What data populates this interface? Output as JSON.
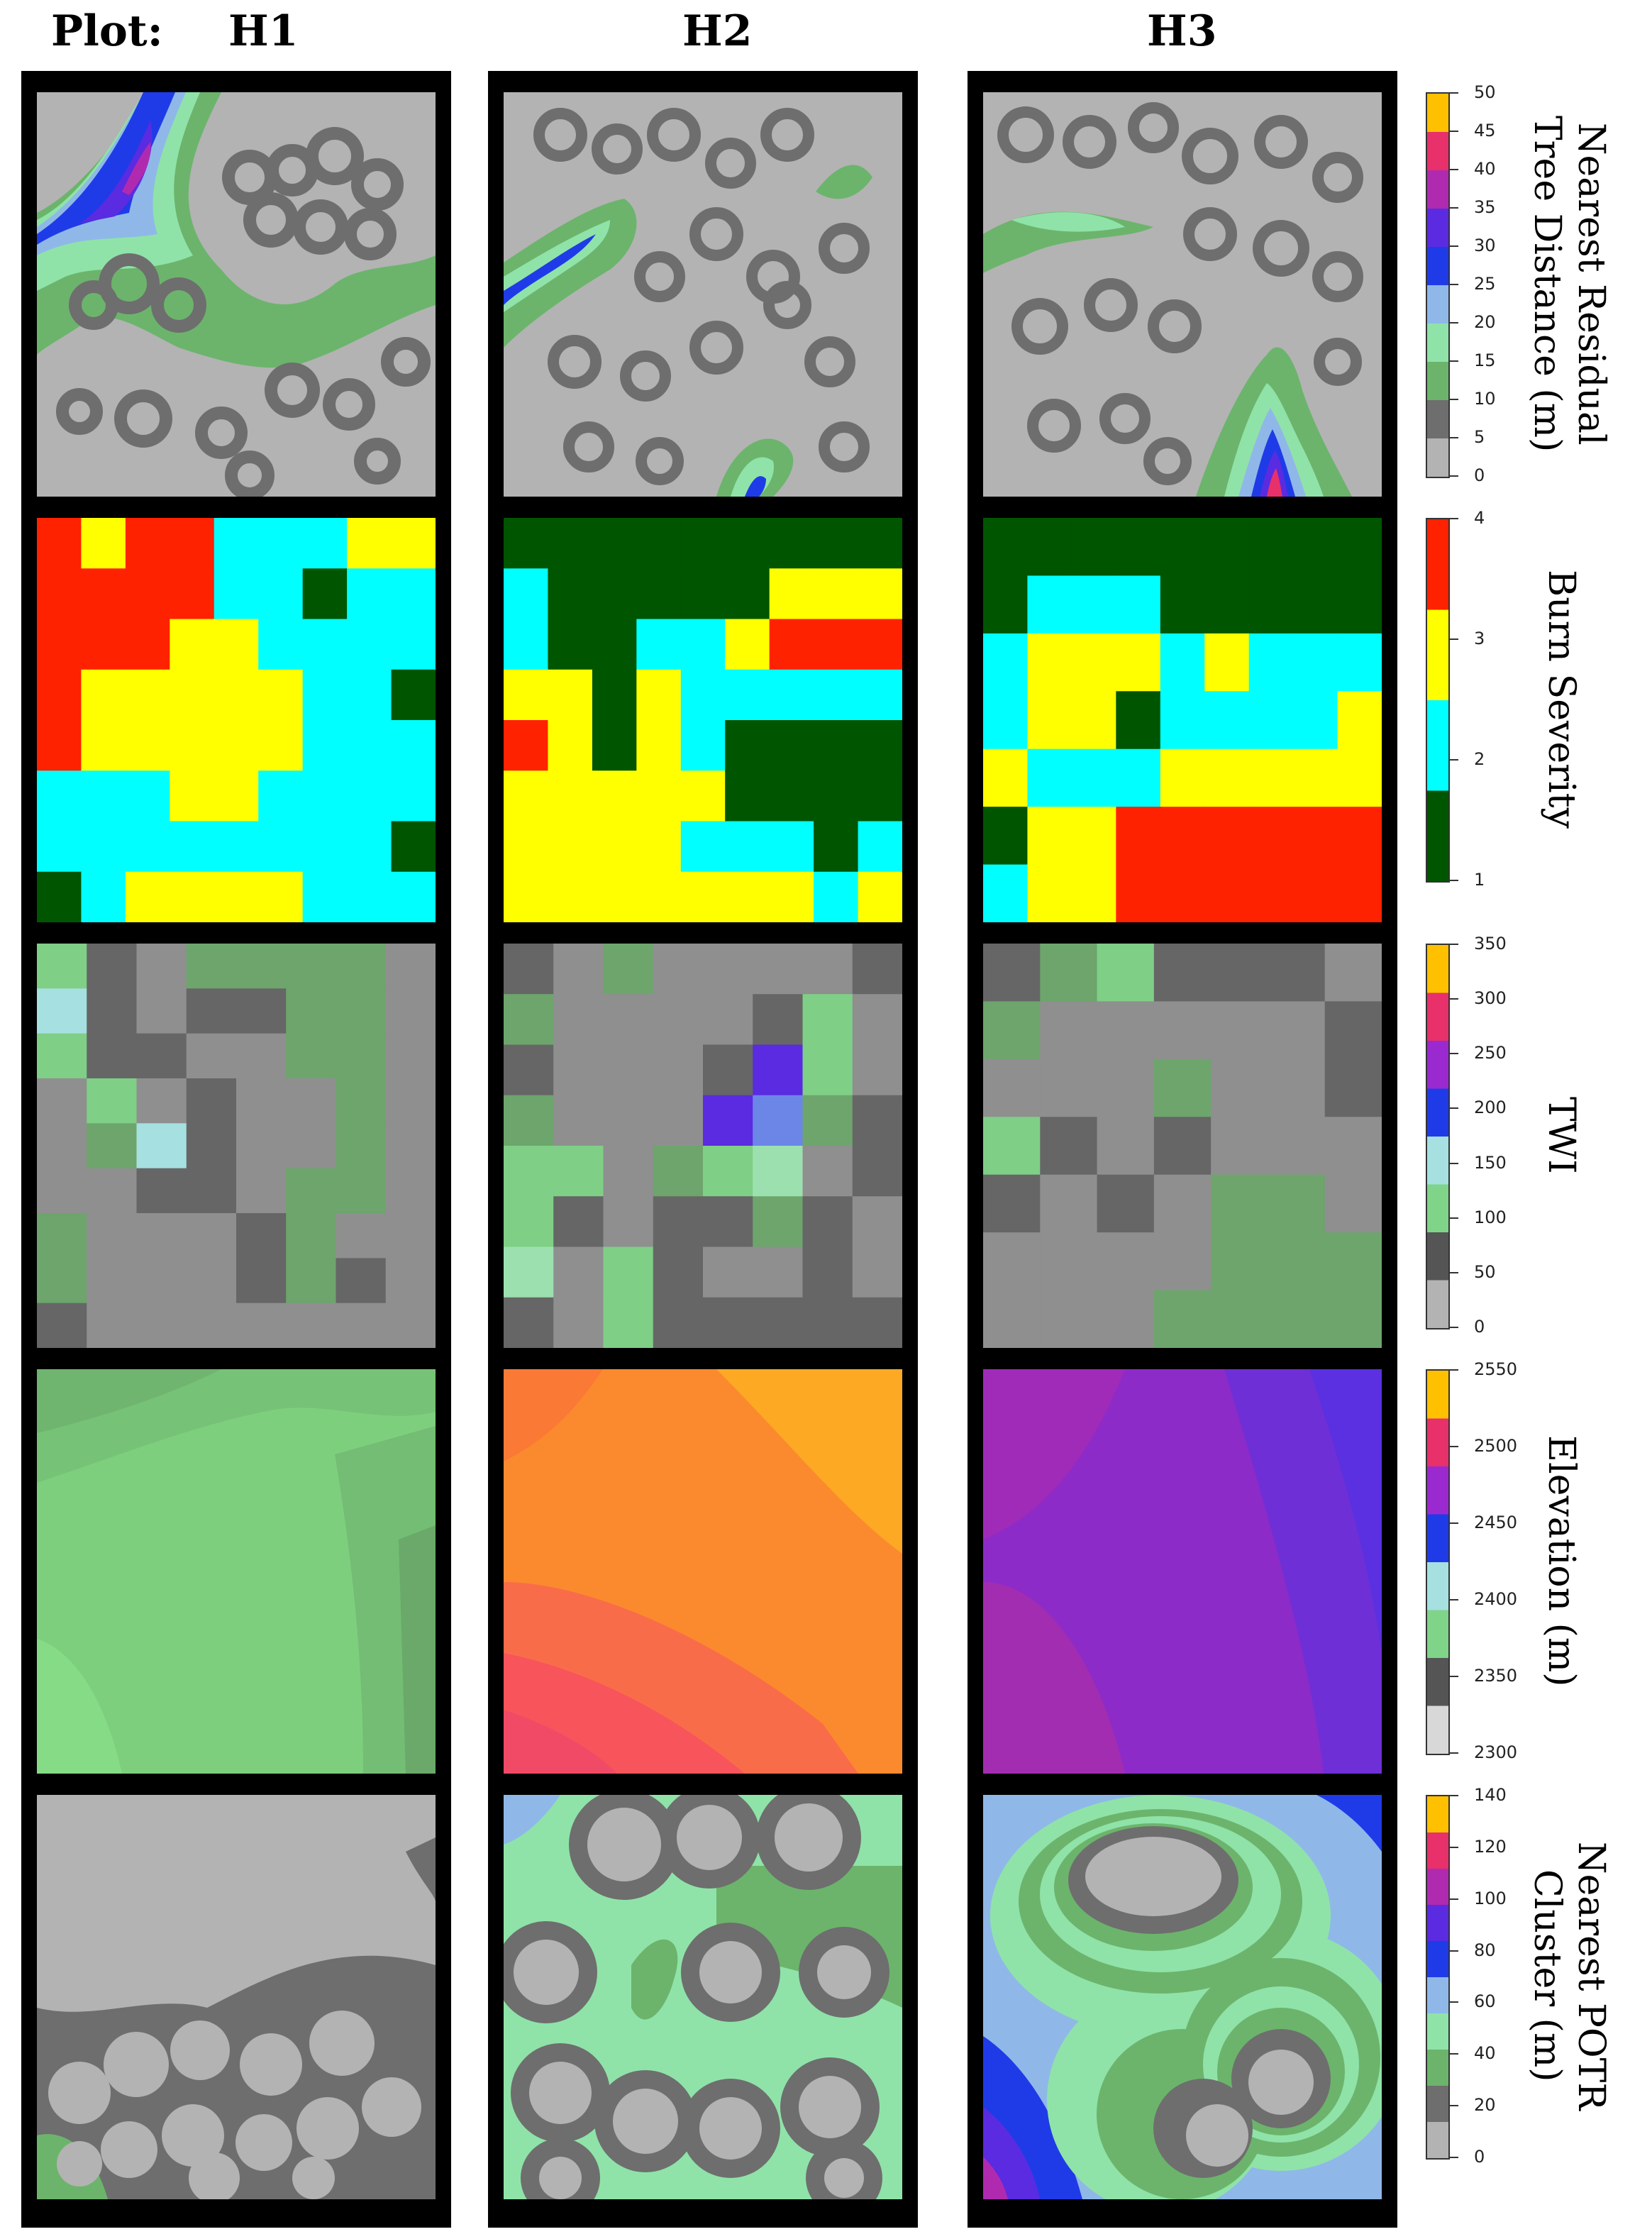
{
  "header": {
    "plot_label": "Plot:",
    "plots": [
      "H1",
      "H2",
      "H3"
    ]
  },
  "rows": [
    {
      "variable": "Nearest Residual Tree Distance (m)",
      "label": "Nearest Residual\nTree Distance (m)",
      "ticks": [
        "0",
        "5",
        "10",
        "15",
        "20",
        "25",
        "30",
        "35",
        "40",
        "45",
        "50"
      ],
      "colors": [
        "#b3b3b3",
        "#6e6e6e",
        "#6cb46c",
        "#8fe3a8",
        "#8fb8e8",
        "#1f3be8",
        "#5a2be0",
        "#b02ab0",
        "#e8306a",
        "#ffc000"
      ]
    },
    {
      "variable": "Burn Severity",
      "label": "Burn Severity",
      "ticks": [
        "1",
        "2",
        "3",
        "4"
      ],
      "colors": [
        "#005500",
        "#00ffff",
        "#ffff00",
        "#ff2200"
      ]
    },
    {
      "variable": "TWI",
      "label": "TWI",
      "ticks": [
        "0",
        "50",
        "100",
        "150",
        "200",
        "250",
        "300",
        "350"
      ],
      "colors": [
        "#b3b3b3",
        "#555555",
        "#7fd48a",
        "#a6e0e0",
        "#1f3be8",
        "#9a2ad0",
        "#e8306a",
        "#ffc000"
      ]
    },
    {
      "variable": "Elevation (m)",
      "label": "Elevation (m)",
      "ticks": [
        "2300",
        "2350",
        "2400",
        "2450",
        "2500",
        "2550"
      ],
      "colors": [
        "#d8d8d8",
        "#555555",
        "#7fd48a",
        "#a6e0e0",
        "#1f3be8",
        "#9a2ad0",
        "#e8306a",
        "#ffc000"
      ]
    },
    {
      "variable": "Nearest POTR Cluster (m)",
      "label": "Nearest POTR\nCluster (m)",
      "ticks": [
        "0",
        "20",
        "40",
        "60",
        "80",
        "100",
        "120",
        "140"
      ],
      "colors": [
        "#b3b3b3",
        "#6e6e6e",
        "#6cb46c",
        "#8fe3a8",
        "#8fb8e8",
        "#1f3be8",
        "#5a2be0",
        "#b02ab0",
        "#e8306a",
        "#ffc000"
      ]
    }
  ],
  "burn_severity": {
    "H1": [
      [
        4,
        3,
        4,
        4,
        2,
        2,
        2,
        3,
        3
      ],
      [
        4,
        4,
        4,
        4,
        2,
        2,
        1,
        2,
        2
      ],
      [
        4,
        4,
        4,
        3,
        3,
        2,
        2,
        2,
        2
      ],
      [
        4,
        3,
        3,
        3,
        3,
        3,
        2,
        2,
        1
      ],
      [
        4,
        3,
        3,
        3,
        3,
        3,
        2,
        2,
        2
      ],
      [
        2,
        2,
        2,
        3,
        3,
        2,
        2,
        2,
        2
      ],
      [
        2,
        2,
        2,
        2,
        2,
        2,
        2,
        2,
        1
      ],
      [
        1,
        2,
        3,
        3,
        3,
        3,
        2,
        2,
        2
      ]
    ],
    "H2": [
      [
        1,
        1,
        1,
        1,
        1,
        1,
        1,
        1,
        1
      ],
      [
        2,
        1,
        1,
        1,
        1,
        1,
        3,
        3,
        3
      ],
      [
        2,
        1,
        1,
        2,
        2,
        3,
        4,
        4,
        4
      ],
      [
        3,
        3,
        1,
        3,
        2,
        2,
        2,
        2,
        2
      ],
      [
        4,
        3,
        1,
        3,
        2,
        1,
        1,
        1,
        1
      ],
      [
        3,
        3,
        3,
        3,
        3,
        1,
        1,
        1,
        1
      ],
      [
        3,
        3,
        3,
        3,
        2,
        2,
        2,
        1,
        2
      ],
      [
        3,
        3,
        3,
        3,
        3,
        3,
        3,
        2,
        3
      ]
    ],
    "H3": [
      [
        1,
        1,
        1,
        1,
        1,
        1,
        1,
        1,
        1
      ],
      [
        1,
        2,
        2,
        2,
        1,
        1,
        1,
        1,
        1
      ],
      [
        2,
        3,
        3,
        3,
        2,
        3,
        2,
        2,
        2
      ],
      [
        2,
        3,
        3,
        1,
        2,
        2,
        2,
        2,
        3
      ],
      [
        3,
        2,
        2,
        2,
        3,
        3,
        3,
        3,
        3
      ],
      [
        1,
        3,
        3,
        4,
        4,
        4,
        4,
        4,
        4
      ],
      [
        2,
        3,
        3,
        4,
        4,
        4,
        4,
        4,
        4
      ]
    ]
  },
  "twi": {
    "H1": [
      [
        100,
        40,
        55,
        70,
        70,
        70,
        70,
        55
      ],
      [
        150,
        40,
        55,
        40,
        40,
        70,
        70,
        55
      ],
      [
        100,
        40,
        40,
        55,
        55,
        70,
        70,
        55
      ],
      [
        55,
        100,
        55,
        40,
        55,
        55,
        70,
        55
      ],
      [
        55,
        70,
        150,
        40,
        55,
        55,
        70,
        55
      ],
      [
        55,
        55,
        40,
        40,
        55,
        70,
        70,
        55
      ],
      [
        70,
        55,
        55,
        55,
        40,
        70,
        55,
        55
      ],
      [
        70,
        55,
        55,
        55,
        40,
        70,
        40,
        55
      ],
      [
        40,
        55,
        55,
        55,
        55,
        55,
        55,
        55
      ]
    ],
    "H2": [
      [
        40,
        55,
        70,
        55,
        55,
        55,
        55,
        40
      ],
      [
        70,
        55,
        55,
        55,
        55,
        40,
        100,
        55
      ],
      [
        40,
        55,
        55,
        55,
        40,
        240,
        100,
        55
      ],
      [
        70,
        55,
        55,
        55,
        250,
        200,
        70,
        40
      ],
      [
        100,
        100,
        55,
        70,
        100,
        140,
        55,
        40
      ],
      [
        100,
        40,
        55,
        40,
        40,
        70,
        40,
        55
      ],
      [
        120,
        55,
        100,
        40,
        55,
        55,
        40,
        55
      ],
      [
        40,
        55,
        100,
        40,
        40,
        40,
        40,
        40
      ]
    ],
    "H3": [
      [
        40,
        70,
        100,
        40,
        40,
        40,
        55
      ],
      [
        70,
        55,
        55,
        55,
        55,
        55,
        40
      ],
      [
        55,
        55,
        55,
        70,
        55,
        55,
        40
      ],
      [
        100,
        40,
        55,
        40,
        55,
        55,
        55
      ],
      [
        40,
        55,
        40,
        55,
        70,
        70,
        55
      ],
      [
        55,
        55,
        55,
        55,
        70,
        70,
        70
      ],
      [
        55,
        55,
        55,
        70,
        70,
        70,
        70
      ]
    ]
  },
  "elevation_tone": {
    "H1": "2380",
    "H2": "2530",
    "H3": "2480"
  }
}
